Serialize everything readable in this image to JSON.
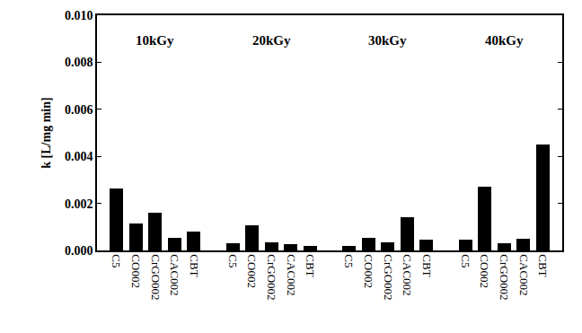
{
  "chart_data": {
    "type": "bar",
    "y_label": "k [L/mg min]",
    "categories": [
      "C5",
      "CO002",
      "CrGO002",
      "CAC002",
      "CBT"
    ],
    "series": [
      {
        "name": "10kGy",
        "color": "#000000",
        "values": [
          0.00265,
          0.00115,
          0.0016,
          0.00055,
          0.0008
        ]
      },
      {
        "name": "20kGy",
        "color": "#000000",
        "values": [
          0.0003,
          0.00105,
          0.00035,
          0.00025,
          0.0002
        ]
      },
      {
        "name": "30kGy",
        "color": "#000000",
        "values": [
          0.0002,
          0.00055,
          0.00035,
          0.0014,
          0.00045
        ]
      },
      {
        "name": "40kGy",
        "color": "#000000",
        "values": [
          0.00045,
          0.0027,
          0.0003,
          0.00048,
          0.0045
        ]
      }
    ],
    "ylim": [
      0,
      0.01
    ],
    "yticks": [
      {
        "value": 0,
        "label": "0.000"
      },
      {
        "value": 0.002,
        "label": "0.002"
      },
      {
        "value": 0.004,
        "label": "0.004"
      },
      {
        "value": 0.006,
        "label": "0.006"
      },
      {
        "value": 0.008,
        "label": "0.008"
      },
      {
        "value": 0.01,
        "label": "0.010"
      }
    ],
    "grid": false
  }
}
